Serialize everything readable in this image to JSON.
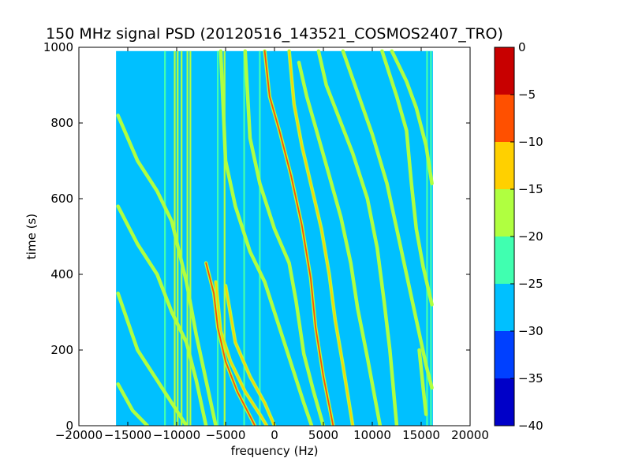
{
  "chart_data": {
    "type": "heatmap",
    "title": "150 MHz signal PSD (20120516_143521_COSMOS2407_TRO)",
    "xlabel": "frequency (Hz)",
    "ylabel": "time (s)",
    "xlim": [
      -20000,
      20000
    ],
    "ylim": [
      0,
      1000
    ],
    "xticks": [
      -20000,
      -15000,
      -10000,
      -5000,
      0,
      5000,
      10000,
      15000,
      20000
    ],
    "yticks": [
      0,
      200,
      400,
      600,
      800,
      1000
    ],
    "data_extent": {
      "x": [
        -16200,
        16200
      ],
      "y": [
        0,
        990
      ]
    },
    "background_level": -27.5,
    "colorbar": {
      "ticks": [
        0,
        -5,
        -10,
        -15,
        -20,
        -25,
        -30,
        -35,
        -40
      ],
      "levels": [
        -40,
        -35,
        -30,
        -25,
        -20,
        -15,
        -10,
        -5,
        0
      ],
      "colors": [
        "#0000c8",
        "#0040ff",
        "#00c0ff",
        "#40ffb0",
        "#b0ff40",
        "#ffd000",
        "#ff5000",
        "#c80000"
      ]
    },
    "vertical_lines": [
      {
        "x": -11200,
        "level": -22
      },
      {
        "x": -10200,
        "level": -18
      },
      {
        "x": -9900,
        "level": -17
      },
      {
        "x": -9500,
        "level": -18
      },
      {
        "x": -8900,
        "level": -20
      },
      {
        "x": -8600,
        "level": -18
      },
      {
        "x": -5800,
        "level": -22
      },
      {
        "x": -5100,
        "level": -20
      },
      {
        "x": -3100,
        "level": -22
      },
      {
        "x": -1500,
        "level": -22
      },
      {
        "x": 15600,
        "level": -22
      },
      {
        "x": 16000,
        "level": -22
      }
    ],
    "tracks": [
      {
        "points": [
          [
            -16000,
            350
          ],
          [
            -14000,
            200
          ],
          [
            -12000,
            120
          ],
          [
            -10000,
            40
          ],
          [
            -9000,
            0
          ]
        ],
        "level": -20
      },
      {
        "points": [
          [
            -16000,
            110
          ],
          [
            -14500,
            40
          ],
          [
            -13000,
            0
          ]
        ],
        "level": -20
      },
      {
        "points": [
          [
            -16000,
            580
          ],
          [
            -14000,
            480
          ],
          [
            -12000,
            400
          ],
          [
            -10500,
            300
          ],
          [
            -9000,
            220
          ],
          [
            -8000,
            120
          ],
          [
            -7000,
            0
          ]
        ],
        "level": -20
      },
      {
        "points": [
          [
            -16000,
            820
          ],
          [
            -14000,
            700
          ],
          [
            -12000,
            620
          ],
          [
            -10500,
            540
          ],
          [
            -9000,
            380
          ],
          [
            -8000,
            240
          ],
          [
            -6500,
            60
          ],
          [
            -6000,
            0
          ]
        ],
        "level": -20
      },
      {
        "points": [
          [
            -6000,
            380
          ],
          [
            -5500,
            250
          ],
          [
            -4500,
            170
          ],
          [
            -3000,
            90
          ],
          [
            -1500,
            30
          ],
          [
            -800,
            0
          ]
        ],
        "level": -15
      },
      {
        "points": [
          [
            -5500,
            990
          ],
          [
            -5000,
            700
          ],
          [
            -4000,
            580
          ],
          [
            -2500,
            460
          ],
          [
            -1000,
            380
          ],
          [
            0,
            300
          ],
          [
            1500,
            180
          ],
          [
            3000,
            60
          ],
          [
            3800,
            0
          ]
        ],
        "level": -20
      },
      {
        "points": [
          [
            -5000,
            370
          ],
          [
            -4000,
            220
          ],
          [
            -2500,
            130
          ],
          [
            -1000,
            60
          ],
          [
            0,
            0
          ]
        ],
        "level": -15
      },
      {
        "points": [
          [
            -7000,
            430
          ],
          [
            -6200,
            350
          ],
          [
            -5800,
            260
          ],
          [
            -5000,
            170
          ],
          [
            -3800,
            90
          ],
          [
            -2600,
            30
          ],
          [
            -2000,
            0
          ]
        ],
        "level": -10
      },
      {
        "points": [
          [
            -3000,
            990
          ],
          [
            -2500,
            760
          ],
          [
            -1500,
            640
          ],
          [
            0,
            520
          ],
          [
            1500,
            430
          ],
          [
            2200,
            330
          ],
          [
            3000,
            190
          ],
          [
            4000,
            90
          ],
          [
            5000,
            0
          ]
        ],
        "level": -20
      },
      {
        "points": [
          [
            -1000,
            990
          ],
          [
            -500,
            870
          ],
          [
            500,
            780
          ],
          [
            1700,
            660
          ],
          [
            2800,
            530
          ],
          [
            3700,
            390
          ],
          [
            4200,
            260
          ],
          [
            5000,
            130
          ],
          [
            6000,
            0
          ]
        ],
        "level": -10
      },
      {
        "points": [
          [
            1500,
            990
          ],
          [
            2000,
            850
          ],
          [
            2800,
            740
          ],
          [
            3800,
            630
          ],
          [
            4800,
            520
          ],
          [
            5600,
            400
          ],
          [
            6200,
            280
          ],
          [
            7000,
            160
          ],
          [
            8000,
            0
          ]
        ],
        "level": -15
      },
      {
        "points": [
          [
            2500,
            960
          ],
          [
            3300,
            870
          ],
          [
            4300,
            780
          ],
          [
            5500,
            670
          ],
          [
            6800,
            550
          ],
          [
            7800,
            430
          ],
          [
            8500,
            310
          ],
          [
            9500,
            180
          ],
          [
            10800,
            0
          ]
        ],
        "level": -20
      },
      {
        "points": [
          [
            4500,
            990
          ],
          [
            5300,
            900
          ],
          [
            6500,
            820
          ],
          [
            8000,
            720
          ],
          [
            9500,
            600
          ],
          [
            10500,
            470
          ],
          [
            11200,
            330
          ],
          [
            11800,
            200
          ],
          [
            12500,
            0
          ]
        ],
        "level": -20
      },
      {
        "points": [
          [
            7000,
            990
          ],
          [
            8500,
            880
          ],
          [
            10000,
            770
          ],
          [
            11500,
            640
          ],
          [
            12500,
            520
          ],
          [
            13500,
            400
          ],
          [
            14500,
            280
          ],
          [
            15500,
            160
          ],
          [
            16100,
            100
          ]
        ],
        "level": -20
      },
      {
        "points": [
          [
            12000,
            990
          ],
          [
            13500,
            910
          ],
          [
            14500,
            840
          ],
          [
            15500,
            740
          ],
          [
            16100,
            640
          ]
        ],
        "level": -20
      },
      {
        "points": [
          [
            11000,
            990
          ],
          [
            12500,
            870
          ],
          [
            13500,
            780
          ],
          [
            14000,
            640
          ],
          [
            14500,
            520
          ],
          [
            15200,
            420
          ],
          [
            16100,
            320
          ]
        ],
        "level": -22
      },
      {
        "points": [
          [
            14800,
            200
          ],
          [
            15200,
            100
          ],
          [
            15500,
            30
          ]
        ],
        "level": -22
      }
    ]
  }
}
